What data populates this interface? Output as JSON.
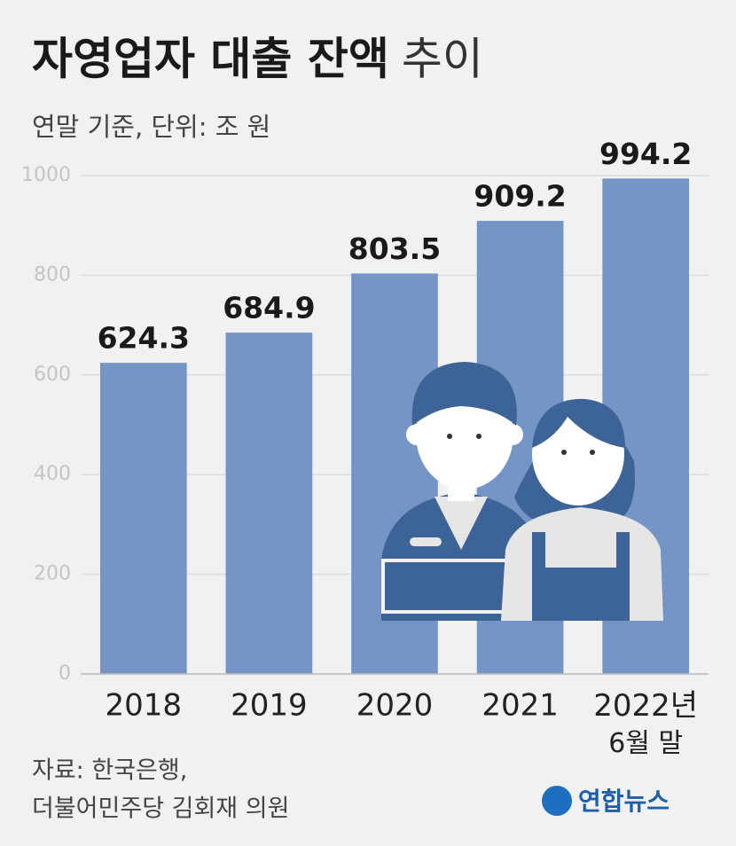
{
  "chart_data": {
    "type": "bar",
    "title": "자영업자 대출 잔액",
    "title_suffix": "추이",
    "subtitle": "연말 기준, 단위: 조 원",
    "categories": [
      "2018",
      "2019",
      "2020",
      "2021",
      "2022년 6월 말"
    ],
    "values": [
      624.3,
      684.9,
      803.5,
      909.2,
      994.2
    ],
    "color": "#7595c6",
    "ylim": [
      0,
      1000
    ],
    "yticks": [
      0,
      200,
      400,
      600,
      800,
      1000
    ],
    "grid": true,
    "source": [
      "자료: 한국은행,",
      "더불어민주당 김회재 의원"
    ],
    "logo": "연합뉴스"
  }
}
